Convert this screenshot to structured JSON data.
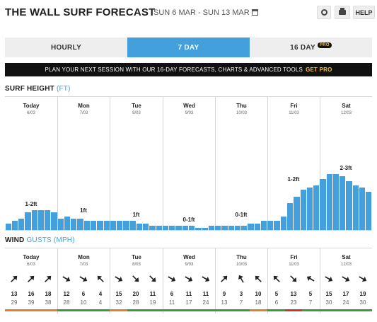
{
  "header": {
    "title": "THE WALL SURF FORECAST",
    "date_range": "SUN 6 MAR - SUN 13 MAR",
    "help_label": "HELP"
  },
  "tabs": [
    {
      "label": "HOURLY",
      "active": false
    },
    {
      "label": "7 DAY",
      "active": true
    },
    {
      "label": "16 DAY",
      "active": false,
      "badge": "PRO"
    }
  ],
  "promo": {
    "text": "PLAN YOUR NEXT SESSION WITH OUR 16-DAY FORECASTS, CHARTS & ADVANCED TOOLS",
    "cta": "GET PRO"
  },
  "surf": {
    "section_label": "SURF HEIGHT",
    "unit": "(FT)"
  },
  "wind": {
    "section_label": "WIND",
    "unit": "GUSTS (MPH)"
  },
  "colors": {
    "accent": "#43a0dc",
    "rating_good": "#3a9a3a",
    "rating_fair": "#d9822b",
    "rating_poor": "#c0392b"
  },
  "days": [
    {
      "name": "Today",
      "date": "6/03",
      "height_label": "1-2ft"
    },
    {
      "name": "Mon",
      "date": "7/03",
      "height_label": "1ft"
    },
    {
      "name": "Tue",
      "date": "8/03",
      "height_label": "1ft"
    },
    {
      "name": "Wed",
      "date": "9/03",
      "height_label": "0-1ft"
    },
    {
      "name": "Thu",
      "date": "10/03",
      "height_label": "0-1ft"
    },
    {
      "name": "Fri",
      "date": "11/03",
      "height_label": "1-2ft"
    },
    {
      "name": "Sat",
      "date": "12/03",
      "height_label": "2-3ft"
    }
  ],
  "chart_data": {
    "type": "bar",
    "ylabel": "SURF HEIGHT (FT)",
    "ylim": [
      0,
      6
    ],
    "values": [
      0.3,
      0.4,
      0.5,
      0.8,
      0.9,
      0.9,
      0.9,
      0.8,
      0.5,
      0.6,
      0.5,
      0.5,
      0.4,
      0.4,
      0.4,
      0.4,
      0.4,
      0.4,
      0.4,
      0.4,
      0.3,
      0.3,
      0.2,
      0.2,
      0.2,
      0.2,
      0.2,
      0.2,
      0.2,
      0.1,
      0.1,
      0.2,
      0.2,
      0.2,
      0.2,
      0.2,
      0.2,
      0.3,
      0.3,
      0.4,
      0.4,
      0.4,
      0.6,
      1.2,
      1.5,
      1.8,
      1.9,
      2.0,
      2.3,
      2.5,
      2.5,
      2.4,
      2.2,
      2.0,
      1.9,
      1.7
    ]
  },
  "wind_slots": [
    {
      "dir": 45,
      "speed": "13",
      "gust": "29",
      "rating": "fair"
    },
    {
      "dir": 45,
      "speed": "16",
      "gust": "39",
      "rating": "fair"
    },
    {
      "dir": 45,
      "speed": "18",
      "gust": "38",
      "rating": "fair"
    },
    {
      "dir": 120,
      "speed": "12",
      "gust": "28",
      "rating": "good"
    },
    {
      "dir": 120,
      "speed": "6",
      "gust": "10",
      "rating": "good"
    },
    {
      "dir": 315,
      "speed": "4",
      "gust": "4",
      "rating": "good"
    },
    {
      "dir": 120,
      "speed": "15",
      "gust": "32",
      "rating": "fair"
    },
    {
      "dir": 135,
      "speed": "20",
      "gust": "28",
      "rating": "good"
    },
    {
      "dir": 135,
      "speed": "11",
      "gust": "19",
      "rating": "good"
    },
    {
      "dir": 120,
      "speed": "6",
      "gust": "11",
      "rating": "good"
    },
    {
      "dir": 120,
      "speed": "11",
      "gust": "17",
      "rating": "good"
    },
    {
      "dir": 120,
      "speed": "11",
      "gust": "24",
      "rating": "good"
    },
    {
      "dir": 45,
      "speed": "9",
      "gust": "13",
      "rating": "good"
    },
    {
      "dir": 330,
      "speed": "3",
      "gust": "7",
      "rating": "good"
    },
    {
      "dir": 315,
      "speed": "10",
      "gust": "18",
      "rating": "fair"
    },
    {
      "dir": 315,
      "speed": "5",
      "gust": "6",
      "rating": "good"
    },
    {
      "dir": 135,
      "speed": "13",
      "gust": "23",
      "rating": "poor"
    },
    {
      "dir": 300,
      "speed": "5",
      "gust": "7",
      "rating": "good"
    },
    {
      "dir": 120,
      "speed": "15",
      "gust": "30",
      "rating": "good"
    },
    {
      "dir": 120,
      "speed": "17",
      "gust": "24",
      "rating": "good"
    },
    {
      "dir": 120,
      "speed": "19",
      "gust": "30",
      "rating": "good"
    }
  ]
}
